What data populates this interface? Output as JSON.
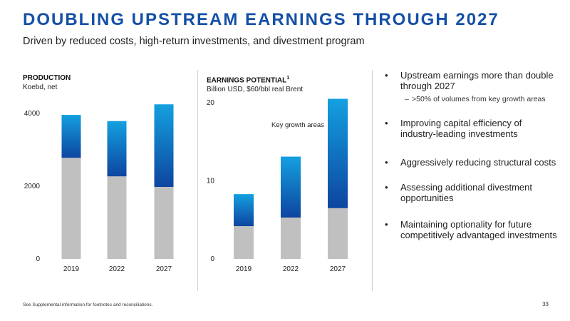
{
  "title": "DOUBLING UPSTREAM EARNINGS THROUGH 2027",
  "subtitle": "Driven by reduced costs, high-return investments, and divestment program",
  "colors": {
    "title": "#1450a8",
    "base_gray": "#c0c0c0",
    "growth_dark": "#0d45a0",
    "growth_light": "#14a0e0"
  },
  "production": {
    "heading": "PRODUCTION",
    "unit": "Koebd, net"
  },
  "earnings": {
    "heading": "EARNINGS POTENTIAL",
    "footnote_mark": "1",
    "unit": "Billion USD, $60/bbl real Brent"
  },
  "bullets": [
    "Upstream earnings more than double through 2027",
    "Improving capital efficiency of industry-leading investments",
    "Aggressively reducing structural costs",
    "Assessing additional divestment opportunities",
    "Maintaining optionality for future competitively advantaged investments"
  ],
  "bullet_symbol": "•",
  "sub_dash": "–",
  "sub_bullet": ">50% of volumes from key growth areas",
  "footnote": "See Supplemental information for footnotes and reconciliations.",
  "page_number": "33",
  "chart_data": [
    {
      "type": "bar",
      "stacked": true,
      "categories": [
        "2019",
        "2022",
        "2027"
      ],
      "ylim": [
        0,
        4000
      ],
      "yticks": [
        0,
        2000,
        4000
      ],
      "series": [
        {
          "values": [
            2780,
            2270,
            1980
          ]
        },
        {
          "values": [
            1180,
            1520,
            2270
          ]
        }
      ]
    },
    {
      "type": "bar",
      "stacked": true,
      "categories": [
        "2019",
        "2022",
        "2027"
      ],
      "ylim": [
        0,
        20
      ],
      "yticks": [
        0,
        10,
        20
      ],
      "annotation": "Key growth areas",
      "series": [
        {
          "values": [
            4.2,
            5.3,
            6.5
          ]
        },
        {
          "values": [
            4.1,
            7.8,
            14.0
          ]
        }
      ]
    }
  ]
}
